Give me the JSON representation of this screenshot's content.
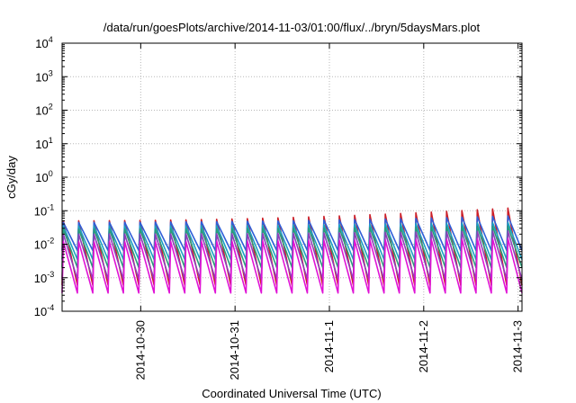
{
  "chart_data": {
    "type": "line",
    "title": "/data/run/goesPlots/archive/2014-11-03/01:00/flux/../bryn/5daysMars.plot",
    "xlabel": "Coordinated Universal Time (UTC)",
    "ylabel": "cGy/day",
    "yscale": "log",
    "ylim": [
      0.0001,
      10000
    ],
    "xlim": [
      "2014-10-29T04:00",
      "2014-11-03T01:00"
    ],
    "grid": true,
    "x_ticks": [
      {
        "label": "2014-10-30",
        "value": "2014-10-30T00:00"
      },
      {
        "label": "2014-10-31",
        "value": "2014-10-31T00:00"
      },
      {
        "label": "2014-11-1",
        "value": "2014-11-01T00:00"
      },
      {
        "label": "2014-11-2",
        "value": "2014-11-02T00:00"
      },
      {
        "label": "2014-11-3",
        "value": "2014-11-03T00:00"
      }
    ],
    "y_ticks": [
      {
        "base": "10",
        "exp": "-4",
        "value": 0.0001
      },
      {
        "base": "10",
        "exp": "-3",
        "value": 0.001
      },
      {
        "base": "10",
        "exp": "-2",
        "value": 0.01
      },
      {
        "base": "10",
        "exp": "-1",
        "value": 0.1
      },
      {
        "base": "10",
        "exp": "0",
        "value": 1
      },
      {
        "base": "10",
        "exp": "1",
        "value": 10
      },
      {
        "base": "10",
        "exp": "2",
        "value": 100
      },
      {
        "base": "10",
        "exp": "3",
        "value": 1000
      },
      {
        "base": "10",
        "exp": "4",
        "value": 10000
      }
    ],
    "cycles_per_day": 6.1,
    "series": [
      {
        "color": "#cc1f28",
        "peak": [
          0.05,
          0.12
        ],
        "trough": [
          0.0006,
          0.0006
        ]
      },
      {
        "color": "#2f5fd8",
        "peak": [
          0.045,
          0.07
        ],
        "trough": [
          0.0065,
          0.0065
        ]
      },
      {
        "color": "#1aa0c4",
        "peak": [
          0.035,
          0.045
        ],
        "trough": [
          0.0035,
          0.0035
        ]
      },
      {
        "color": "#2a9c7a",
        "peak": [
          0.028,
          0.035
        ],
        "trough": [
          0.002,
          0.002
        ]
      },
      {
        "color": "#8e3fb8",
        "peak": [
          0.02,
          0.025
        ],
        "trough": [
          0.0009,
          0.0009
        ]
      },
      {
        "color": "#e013d6",
        "peak": [
          0.012,
          0.015
        ],
        "trough": [
          0.00035,
          0.00035
        ]
      }
    ]
  }
}
